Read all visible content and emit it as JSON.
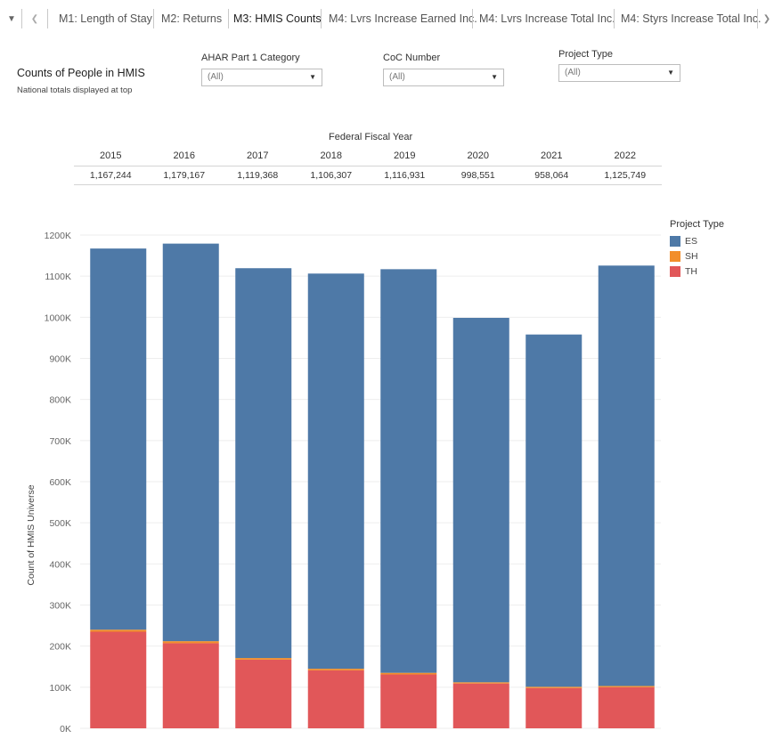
{
  "tabs": [
    {
      "label": "M1: Length of Stay",
      "active": false
    },
    {
      "label": "M2: Returns",
      "active": false
    },
    {
      "label": "M3: HMIS Counts",
      "active": true
    },
    {
      "label": "M4: Lvrs Increase Earned Inc.",
      "active": false
    },
    {
      "label": "M4: Lvrs Increase Total Inc.",
      "active": false
    },
    {
      "label": "M4: Styrs Increase Total Inc.",
      "active": false
    }
  ],
  "header": {
    "title": "Counts of People in HMIS",
    "subtitle": "National totals displayed at top"
  },
  "filters": [
    {
      "label": "AHAR Part 1 Category",
      "value": "(All)"
    },
    {
      "label": "CoC Number",
      "value": "(All)"
    },
    {
      "label": "Project Type",
      "value": "(All)"
    }
  ],
  "totals": {
    "header": "Federal Fiscal Year",
    "years": [
      "2015",
      "2016",
      "2017",
      "2018",
      "2019",
      "2020",
      "2021",
      "2022"
    ],
    "values": [
      "1,167,244",
      "1,179,167",
      "1,119,368",
      "1,106,307",
      "1,116,931",
      "998,551",
      "958,064",
      "1,125,749"
    ]
  },
  "icons": {
    "menu": "dropdown-menu-icon",
    "prev": "chevron-left-icon",
    "next": "chevron-right-icon",
    "dropdown": "caret-down-icon"
  },
  "colors": {
    "ES": "#4e79a7",
    "SH": "#f28e2b",
    "TH": "#e15759"
  },
  "chart_data": {
    "type": "bar",
    "stacked": true,
    "ylabel": "Count of HMIS Universe",
    "ylim": [
      0,
      1200000
    ],
    "yticks": [
      "0K",
      "100K",
      "200K",
      "300K",
      "400K",
      "500K",
      "600K",
      "700K",
      "800K",
      "900K",
      "1000K",
      "1100K",
      "1200K"
    ],
    "categories": [
      "2015",
      "2016",
      "2017",
      "2018",
      "2019",
      "2020",
      "2021",
      "2022"
    ],
    "legend_title": "Project Type",
    "legend_placement": "top-right",
    "grid": true,
    "series": [
      {
        "name": "TH",
        "values": [
          235000,
          207000,
          167000,
          141000,
          131000,
          109000,
          98000,
          100000
        ]
      },
      {
        "name": "SH",
        "values": [
          5000,
          5000,
          4000,
          4000,
          4000,
          3000,
          3000,
          3000
        ]
      },
      {
        "name": "ES",
        "values": [
          927244,
          967167,
          948368,
          961307,
          981931,
          886551,
          857064,
          1022749
        ]
      }
    ]
  }
}
